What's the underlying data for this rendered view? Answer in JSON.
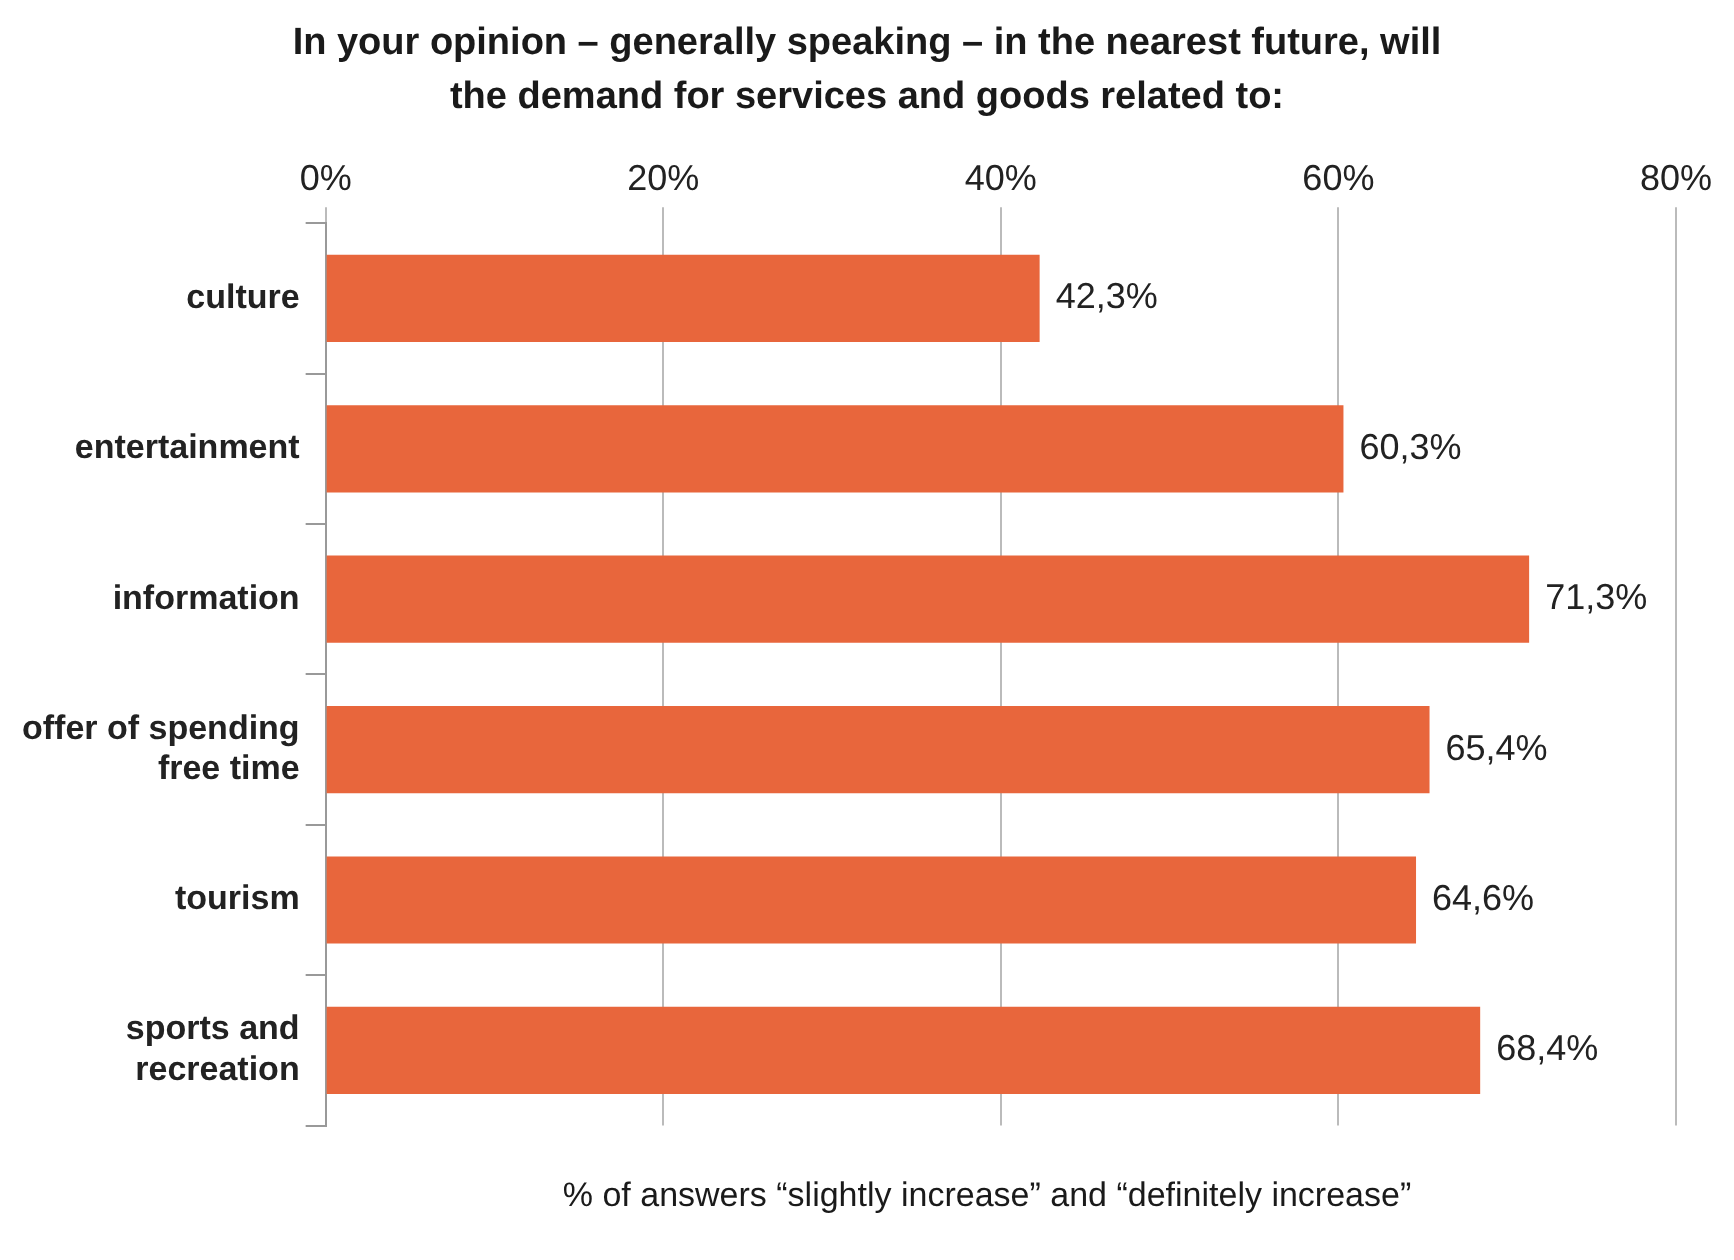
{
  "chart_data": {
    "type": "bar",
    "orientation": "horizontal",
    "title": "In your opinion – generally speaking – in the nearest future, will the demand for services and goods related to:",
    "xlabel": "% of answers “slightly increase” and “definitely increase”",
    "categories": [
      "culture",
      "entertainment",
      "information",
      "offer of spending free time",
      "tourism",
      "sports and recreation"
    ],
    "values": [
      42.3,
      60.3,
      71.3,
      65.4,
      64.6,
      68.4
    ],
    "value_labels": [
      "42,3%",
      "60,3%",
      "71,3%",
      "65,4%",
      "64,6%",
      "68,4%"
    ],
    "color": "#e8663c",
    "xlim": [
      0,
      80
    ],
    "xticks": [
      {
        "value": 0,
        "label": "0%"
      },
      {
        "value": 20,
        "label": "20%"
      },
      {
        "value": 40,
        "label": "40%"
      },
      {
        "value": 60,
        "label": "60%"
      },
      {
        "value": 80,
        "label": "80%"
      }
    ],
    "grid": "x",
    "legend": false
  }
}
